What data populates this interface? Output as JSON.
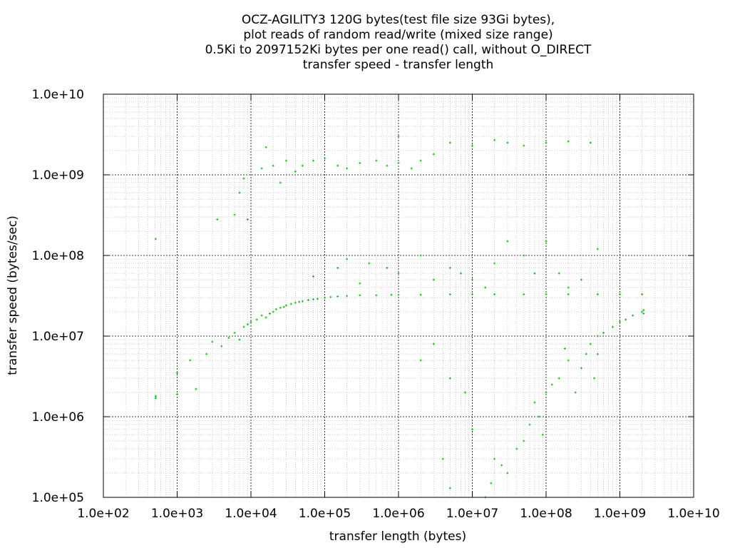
{
  "chart_data": {
    "type": "scatter",
    "title_lines": [
      "OCZ-AGILITY3 120G bytes(test file size 93Gi bytes),",
      "plot reads of random read/write (mixed size range)",
      "0.5Ki to 2097152Ki bytes per one read() call, without O_DIRECT",
      "transfer speed - transfer length"
    ],
    "xlabel": "transfer length (bytes)",
    "ylabel": "transfer speed (bytes/sec)",
    "x_scale": "log",
    "y_scale": "log",
    "xlim": [
      100,
      10000000000
    ],
    "ylim": [
      100000,
      10000000000
    ],
    "x_ticks": [
      {
        "value": 100,
        "label": "1.0e+02"
      },
      {
        "value": 1000,
        "label": "1.0e+03"
      },
      {
        "value": 10000,
        "label": "1.0e+04"
      },
      {
        "value": 100000,
        "label": "1.0e+05"
      },
      {
        "value": 1000000,
        "label": "1.0e+06"
      },
      {
        "value": 10000000,
        "label": "1.0e+07"
      },
      {
        "value": 100000000,
        "label": "1.0e+08"
      },
      {
        "value": 1000000000,
        "label": "1.0e+09"
      },
      {
        "value": 10000000000,
        "label": "1.0e+10"
      }
    ],
    "y_ticks": [
      {
        "value": 100000,
        "label": "1.0e+05"
      },
      {
        "value": 1000000,
        "label": "1.0e+06"
      },
      {
        "value": 10000000,
        "label": "1.0e+07"
      },
      {
        "value": 100000000,
        "label": "1.0e+08"
      },
      {
        "value": 1000000000,
        "label": "1.0e+09"
      },
      {
        "value": 10000000000,
        "label": "1.0e+10"
      }
    ],
    "grid": true,
    "marker_color": "#00c000",
    "series": [
      {
        "points": [
          [
            512,
            1800000
          ],
          [
            512,
            1700000
          ],
          [
            1000,
            3500000
          ],
          [
            1000,
            1900000
          ],
          [
            1500,
            5000000
          ],
          [
            1800,
            2200000
          ],
          [
            2500,
            6000000
          ],
          [
            3000,
            8500000
          ],
          [
            4000,
            7500000
          ],
          [
            5000,
            9500000
          ],
          [
            6000,
            11000000
          ],
          [
            7000,
            9000000
          ],
          [
            8000,
            13000000
          ],
          [
            9000,
            14000000
          ],
          [
            10000,
            15000000
          ],
          [
            12000,
            16000000
          ],
          [
            14000,
            18000000
          ],
          [
            16000,
            17000000
          ],
          [
            18000,
            19000000
          ],
          [
            20000,
            20000000
          ],
          [
            22000,
            21500000
          ],
          [
            25000,
            22500000
          ],
          [
            28000,
            23000000
          ],
          [
            30000,
            24000000
          ],
          [
            35000,
            25000000
          ],
          [
            40000,
            26000000
          ],
          [
            45000,
            26500000
          ],
          [
            50000,
            27000000
          ],
          [
            60000,
            28000000
          ],
          [
            70000,
            28500000
          ],
          [
            80000,
            29000000
          ],
          [
            100000,
            30000000
          ],
          [
            120000,
            30500000
          ],
          [
            150000,
            31000000
          ],
          [
            200000,
            31500000
          ],
          [
            300000,
            32000000
          ],
          [
            500000,
            32000000
          ],
          [
            800000,
            32500000
          ],
          [
            1000000,
            32500000
          ],
          [
            2000000,
            32500000
          ],
          [
            5000000,
            33000000
          ],
          [
            10000000,
            33000000
          ],
          [
            20000000,
            33000000
          ],
          [
            50000000,
            33000000
          ],
          [
            100000000,
            33000000
          ],
          [
            200000000,
            33000000
          ],
          [
            500000000,
            33000000
          ],
          [
            1000000000,
            33000000
          ],
          [
            2000000000,
            33000000
          ],
          [
            512,
            160000000
          ],
          [
            3500,
            280000000
          ],
          [
            6000,
            320000000
          ],
          [
            7000,
            600000000
          ],
          [
            8000,
            900000000
          ],
          [
            9000,
            280000000
          ],
          [
            14000,
            1200000000
          ],
          [
            16000,
            2200000000
          ],
          [
            20000,
            1300000000
          ],
          [
            25000,
            800000000
          ],
          [
            30000,
            1500000000
          ],
          [
            40000,
            1100000000
          ],
          [
            50000,
            1300000000
          ],
          [
            70000,
            1500000000
          ],
          [
            100000,
            1600000000
          ],
          [
            150000,
            1300000000
          ],
          [
            200000,
            1200000000
          ],
          [
            300000,
            1400000000
          ],
          [
            500000,
            1500000000
          ],
          [
            700000,
            1300000000
          ],
          [
            1000000,
            1400000000
          ],
          [
            1000000,
            3000000000
          ],
          [
            1500000,
            1200000000
          ],
          [
            2000000,
            1500000000
          ],
          [
            3000000,
            1800000000
          ],
          [
            5000000,
            2500000000
          ],
          [
            10000000,
            2300000000
          ],
          [
            20000000,
            2700000000
          ],
          [
            30000000,
            2500000000
          ],
          [
            50000000,
            2300000000
          ],
          [
            100000000,
            2500000000
          ],
          [
            200000000,
            2600000000
          ],
          [
            400000000,
            2500000000
          ],
          [
            200000,
            90000000
          ],
          [
            400000,
            80000000
          ],
          [
            700000,
            70000000
          ],
          [
            1000000,
            60000000
          ],
          [
            2000000,
            100000000
          ],
          [
            3000000,
            50000000
          ],
          [
            5000000,
            70000000
          ],
          [
            7000000,
            60000000
          ],
          [
            10000000,
            50000000
          ],
          [
            15000000,
            40000000
          ],
          [
            20000000,
            80000000
          ],
          [
            30000000,
            150000000
          ],
          [
            50000000,
            100000000
          ],
          [
            70000000,
            60000000
          ],
          [
            100000000,
            150000000
          ],
          [
            150000000,
            60000000
          ],
          [
            200000000,
            40000000
          ],
          [
            300000000,
            50000000
          ],
          [
            500000000,
            120000000
          ],
          [
            70000,
            55000000
          ],
          [
            150000,
            70000000
          ],
          [
            300000,
            45000000
          ],
          [
            3000000,
            8000000
          ],
          [
            5000000,
            3000000
          ],
          [
            8000000,
            2000000
          ],
          [
            2000000,
            5000000
          ],
          [
            4000000,
            300000
          ],
          [
            5000000,
            130000
          ],
          [
            10000000,
            700000
          ],
          [
            20000000,
            300000
          ],
          [
            30000000,
            200000
          ],
          [
            40000000,
            400000
          ],
          [
            60000000,
            800000
          ],
          [
            80000000,
            1000000
          ],
          [
            100000000,
            2000000
          ],
          [
            150000000,
            3000000
          ],
          [
            200000000,
            5000000
          ],
          [
            300000000,
            4000000
          ],
          [
            400000000,
            8000000
          ],
          [
            500000000,
            10000000
          ],
          [
            600000000,
            11000000
          ],
          [
            800000000,
            13000000
          ],
          [
            1000000000,
            15000000
          ],
          [
            1200000000,
            16000000
          ],
          [
            1500000000,
            18000000
          ],
          [
            2000000000,
            20000000
          ],
          [
            2100000000,
            21000000
          ],
          [
            2100000000,
            19000000
          ],
          [
            15000000,
            100000
          ],
          [
            18000000,
            150000
          ],
          [
            25000000,
            250000
          ],
          [
            50000000,
            500000
          ],
          [
            70000000,
            1500000
          ],
          [
            90000000,
            600000
          ],
          [
            120000000,
            2500000
          ],
          [
            180000000,
            7000000
          ],
          [
            250000000,
            2000000
          ],
          [
            350000000,
            6000000
          ],
          [
            450000000,
            3000000
          ],
          [
            500000000,
            6000000
          ]
        ]
      }
    ]
  }
}
